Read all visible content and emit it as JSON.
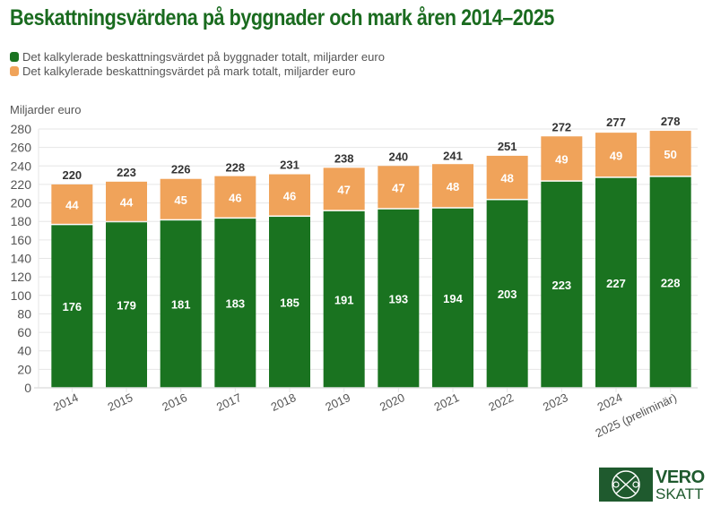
{
  "chart_data": {
    "type": "bar",
    "stacked": true,
    "title": "Beskattningsvärdena på byggnader och mark åren 2014–2025",
    "ylabel": "Miljarder euro",
    "xlabel": "",
    "ylim": [
      0,
      280
    ],
    "yticks": [
      0,
      20,
      40,
      60,
      80,
      100,
      120,
      140,
      160,
      180,
      200,
      220,
      240,
      260,
      280
    ],
    "grid": true,
    "legend_position": "top-left",
    "categories": [
      "2014",
      "2015",
      "2016",
      "2017",
      "2018",
      "2019",
      "2020",
      "2021",
      "2022",
      "2023",
      "2024",
      "2025 (preliminär)"
    ],
    "series": [
      {
        "name": "Det kalkylerade beskattningsvärdet på byggnader totalt, miljarder euro",
        "color": "#1a7320",
        "values": [
          176,
          179,
          181,
          183,
          185,
          191,
          193,
          194,
          203,
          223,
          227,
          228
        ]
      },
      {
        "name": "Det kalkylerade beskattningsvärdet på mark totalt, miljarder euro",
        "color": "#f0a35a",
        "values": [
          44,
          44,
          45,
          46,
          46,
          47,
          47,
          48,
          48,
          49,
          49,
          50
        ]
      }
    ],
    "totals": [
      220,
      223,
      226,
      228,
      231,
      238,
      240,
      241,
      251,
      272,
      277,
      278
    ]
  },
  "logo": {
    "line1": "VERO",
    "line2": "SKATT"
  }
}
